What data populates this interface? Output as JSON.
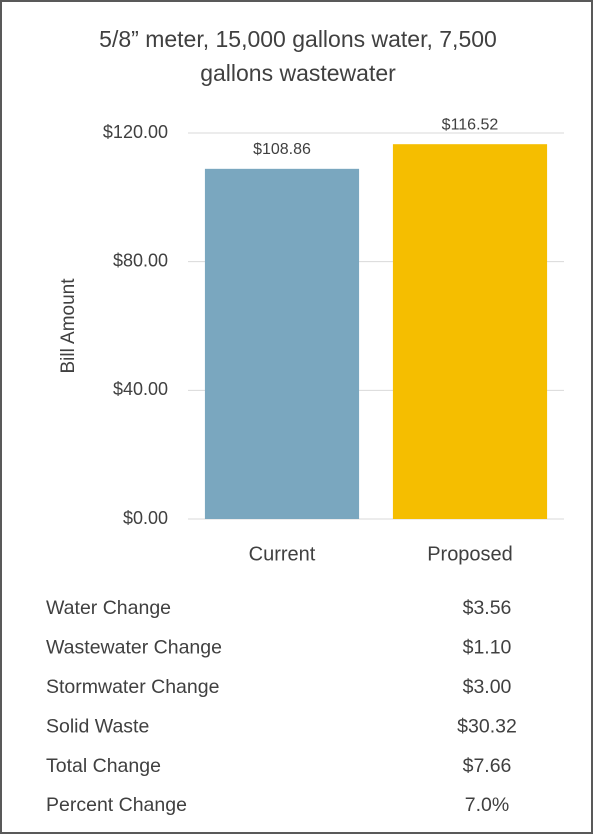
{
  "chart_data": {
    "type": "bar",
    "title": "5/8” meter, 15,000 gallons water, 7,500 gallons wastewater",
    "y_label": "Bill Amount",
    "categories": [
      "Current",
      "Proposed"
    ],
    "values": [
      108.86,
      116.52
    ],
    "value_labels": [
      "$108.86",
      "$116.52"
    ],
    "colors": [
      "#7aa7bf",
      "#f5be00"
    ],
    "ylim": [
      0,
      120
    ],
    "yticks": [
      {
        "value": 0,
        "label": "$0.00"
      },
      {
        "value": 40,
        "label": "$40.00"
      },
      {
        "value": 80,
        "label": "$80.00"
      },
      {
        "value": 120,
        "label": "$120.00"
      }
    ],
    "grid": true
  },
  "table": {
    "rows": [
      [
        "Water Change",
        "$3.56"
      ],
      [
        "Wastewater Change",
        "$1.10"
      ],
      [
        "Stormwater Change",
        "$3.00"
      ],
      [
        "Solid Waste",
        "$30.32"
      ],
      [
        "Total Change",
        "$7.66"
      ],
      [
        "Percent Change",
        "7.0%"
      ]
    ]
  }
}
